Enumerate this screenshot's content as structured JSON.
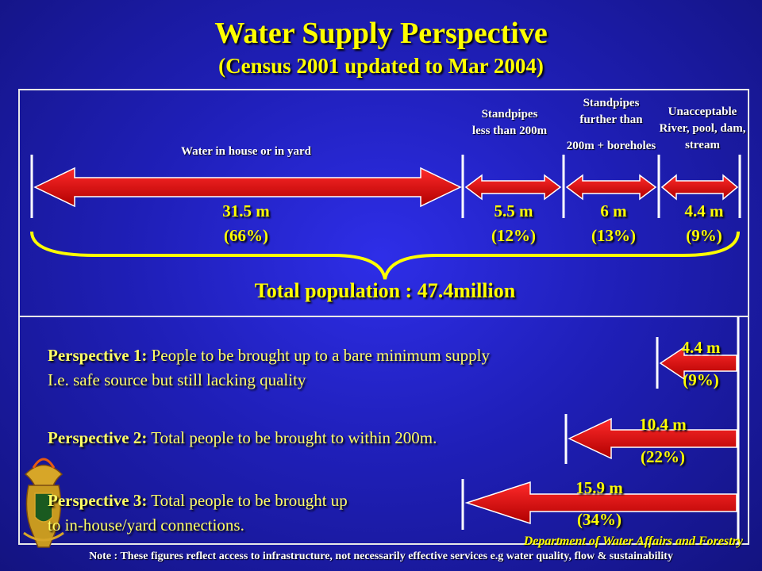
{
  "title": "Water Supply Perspective",
  "subtitle": "(Census 2001 updated to Mar 2004)",
  "segments": [
    {
      "label": "Water in house or in yard",
      "value": "31.5 m",
      "percent": "(66%)"
    },
    {
      "label": "Standpipes less than 200m",
      "value": "5.5 m",
      "percent": "(12%)"
    },
    {
      "label_line1": "Standpipes further than",
      "label_line2": "200m + boreholes",
      "value": "6 m",
      "percent": "(13%)"
    },
    {
      "label": "Unacceptable River, pool, dam, stream",
      "value": "4.4 m",
      "percent": "(9%)"
    }
  ],
  "total": "Total population : 47.4million",
  "perspectives": [
    {
      "heading": "Perspective 1:",
      "text": " People to be brought up to a bare minimum supply",
      "text2": "I.e. safe source but still lacking quality",
      "value": "4.4 m",
      "percent": "(9%)"
    },
    {
      "heading": "Perspective 2:",
      "text": " Total people to be brought to within 200m.",
      "value": "10.4 m",
      "percent": "(22%)"
    },
    {
      "heading": "Perspective 3:",
      "text": " Total people to be brought up",
      "text2": "to in-house/yard connections.",
      "value": "15.9 m",
      "percent": "(34%)"
    }
  ],
  "footer": {
    "department": "Department of Water Affairs and Forestry",
    "note": "Note : These figures reflect access to infrastructure, not necessarily effective services e.g water quality, flow & sustainability"
  },
  "colors": {
    "background": "#1f1fb8",
    "accent": "#ffff00",
    "arrow": "#e00000"
  }
}
